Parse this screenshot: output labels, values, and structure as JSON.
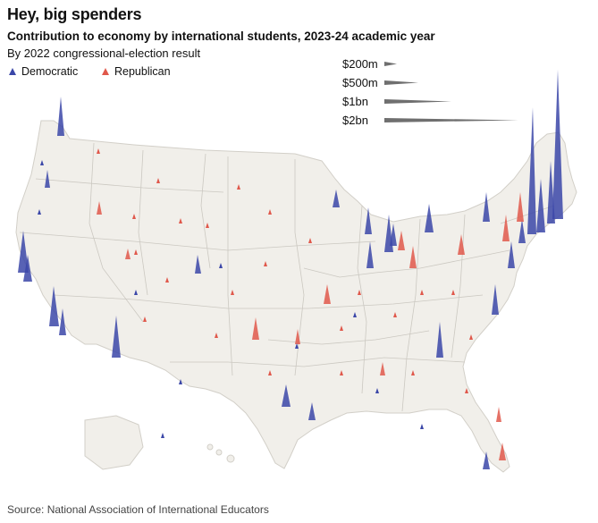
{
  "title": "Hey, big spenders",
  "subtitle": "Contribution to economy by international students, 2023-24 academic year",
  "subtitle2": "By 2022 congressional-election result",
  "legend": {
    "democratic": "Democratic",
    "republican": "Republican",
    "sizes": [
      "$200m",
      "$500m",
      "$1bn",
      "$2bn"
    ]
  },
  "colors": {
    "democratic": "#3b47a8",
    "republican": "#e0584b",
    "land": "#f1efea",
    "border": "#c9c6bf"
  },
  "source": "Source: National Association of International Educators"
}
